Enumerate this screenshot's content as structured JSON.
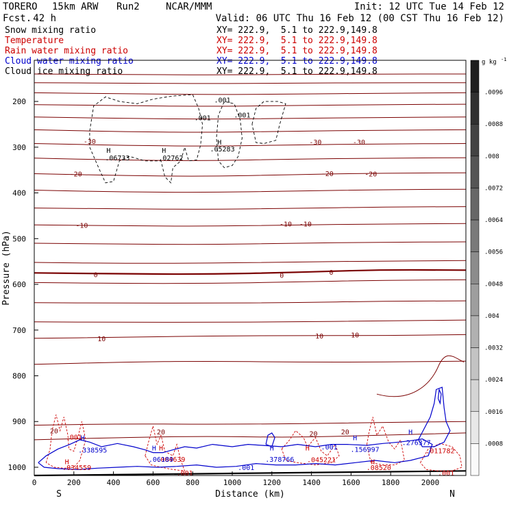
{
  "header": {
    "model": "TORERO",
    "grid": "15km ARW",
    "run": "Run2",
    "org": "NCAR/MMM",
    "init": "Init: 12 UTC Tue 14 Feb 12",
    "fcst_label": "Fcst.",
    "fcst_value": "42 h",
    "valid": "Valid: 06 UTC Thu 16 Feb 12 (00 CST Thu 16 Feb 12)"
  },
  "legend": [
    {
      "name": "Snow mixing ratio",
      "xy": "XY= 222.9,  5.1 to 222.9,149.8",
      "color": "#000000"
    },
    {
      "name": "Temperature",
      "xy": "XY= 222.9,  5.1 to 222.9,149.8",
      "color": "#cc0000"
    },
    {
      "name": "Rain water mixing ratio",
      "xy": "XY= 222.9,  5.1 to 222.9,149.8",
      "color": "#cc0000"
    },
    {
      "name": "Cloud water mixing ratio",
      "xy": "XY= 222.9,  5.1 to 222.9,149.8",
      "color": "#0000cc"
    },
    {
      "name": "Cloud ice mixing ratio",
      "xy": "XY= 222.9,  5.1 to 222.9,149.8",
      "color": "#000000"
    }
  ],
  "colors": {
    "temperature": "#7a0000",
    "rain": "#cc0000",
    "cloud_water": "#0000cc",
    "snow": "#000000",
    "axes": "#000000"
  },
  "chart_data": {
    "type": "line",
    "xlabel": "Distance (km)",
    "ylabel": "Pressure (hPa)",
    "xlim": [
      0,
      2180
    ],
    "ylim": [
      1018,
      110
    ],
    "x_ticks": [
      0,
      200,
      400,
      600,
      800,
      1000,
      1200,
      1400,
      1600,
      1800,
      2000
    ],
    "y_ticks": [
      200,
      300,
      400,
      500,
      600,
      700,
      800,
      900,
      1000
    ],
    "x_end_labels": {
      "left": "S",
      "right": "N"
    },
    "temperature_contours": [
      {
        "value": -45,
        "p": [
          140,
          141,
          142,
          141,
          140,
          140
        ]
      },
      {
        "value": -45,
        "p": [
          159,
          160,
          161,
          160,
          159,
          159
        ]
      },
      {
        "value": -40,
        "p": [
          181,
          183,
          185,
          184,
          182,
          181
        ]
      },
      {
        "value": -40,
        "p": [
          207,
          209,
          211,
          209,
          207,
          206
        ]
      },
      {
        "value": -35,
        "p": [
          234,
          237,
          239,
          237,
          235,
          234
        ]
      },
      {
        "value": -30,
        "p": [
          262,
          266,
          268,
          265,
          263,
          262
        ]
      },
      {
        "value": -30,
        "p": [
          292,
          296,
          298,
          295,
          293,
          292
        ]
      },
      {
        "value": -25,
        "p": [
          324,
          328,
          330,
          326,
          324,
          323
        ]
      },
      {
        "value": -20,
        "p": [
          358,
          362,
          364,
          360,
          357,
          356
        ]
      },
      {
        "value": -20,
        "p": [
          394,
          398,
          399,
          396,
          393,
          392
        ]
      },
      {
        "value": -15,
        "p": [
          433,
          435,
          436,
          434,
          431,
          430
        ]
      },
      {
        "value": -10,
        "p": [
          470,
          472,
          473,
          470,
          468,
          467
        ]
      },
      {
        "value": -10,
        "p": [
          510,
          512,
          513,
          510,
          508,
          507
        ]
      },
      {
        "value": -5,
        "p": [
          552,
          554,
          554,
          551,
          549,
          548
        ]
      },
      {
        "value": 0,
        "p": [
          575,
          577,
          578,
          574,
          568,
          569
        ]
      },
      {
        "value": 0,
        "p": [
          596,
          598,
          598,
          595,
          591,
          590
        ]
      },
      {
        "value": 5,
        "p": [
          640,
          641,
          641,
          640,
          637,
          636
        ]
      },
      {
        "value": 10,
        "p": [
          682,
          683,
          683,
          682,
          680,
          678
        ]
      },
      {
        "value": 10,
        "p": [
          718,
          716,
          713,
          712,
          712,
          710
        ]
      },
      {
        "value": 15,
        "p": [
          775,
          770,
          768,
          770,
          770,
          768
        ]
      },
      {
        "value": 20,
        "p": [
          908,
          905,
          906,
          905,
          902,
          900
        ]
      },
      {
        "value": 20,
        "p": [
          940,
          935,
          932,
          935,
          930,
          925
        ]
      }
    ],
    "temperature_labels": [
      {
        "text": "-30",
        "x": 280,
        "p": 287
      },
      {
        "text": "-30",
        "x": 1420,
        "p": 288
      },
      {
        "text": "-30",
        "x": 1640,
        "p": 288
      },
      {
        "text": "-20",
        "x": 210,
        "p": 358
      },
      {
        "text": "-20",
        "x": 1480,
        "p": 357
      },
      {
        "text": "-20",
        "x": 1700,
        "p": 358
      },
      {
        "text": "-10",
        "x": 240,
        "p": 470
      },
      {
        "text": "-10",
        "x": 1270,
        "p": 467
      },
      {
        "text": "-10",
        "x": 1370,
        "p": 467
      },
      {
        "text": "0",
        "x": 310,
        "p": 578
      },
      {
        "text": "0",
        "x": 1250,
        "p": 580
      },
      {
        "text": "0",
        "x": 1500,
        "p": 573
      },
      {
        "text": "10",
        "x": 340,
        "p": 718
      },
      {
        "text": "10",
        "x": 1440,
        "p": 712
      },
      {
        "text": "10",
        "x": 1620,
        "p": 710
      },
      {
        "text": "20",
        "x": 100,
        "p": 920
      },
      {
        "text": "20",
        "x": 640,
        "p": 922
      },
      {
        "text": "20",
        "x": 1410,
        "p": 926
      },
      {
        "text": "20",
        "x": 1570,
        "p": 922
      }
    ],
    "snow_labels": [
      {
        "text": ".001",
        "x": 950,
        "p": 196
      },
      {
        "text": ".001",
        "x": 850,
        "p": 235
      },
      {
        "text": ".001",
        "x": 1050,
        "p": 229
      },
      {
        "text": "H",
        "x": 935,
        "p": 288
      },
      {
        "text": ".05283",
        "x": 950,
        "p": 303
      },
      {
        "text": "H",
        "x": 375,
        "p": 306
      },
      {
        "text": ".06733",
        "x": 420,
        "p": 323
      },
      {
        "text": "H",
        "x": 655,
        "p": 306
      },
      {
        "text": ".02762",
        "x": 690,
        "p": 323
      }
    ],
    "rain_labels": [
      {
        "text": ".001",
        "x": 200,
        "p": 933
      },
      {
        "text": "H",
        "x": 165,
        "p": 987
      },
      {
        "text": ".034559",
        "x": 215,
        "p": 1000
      },
      {
        "text": "H",
        "x": 640,
        "p": 957
      },
      {
        "text": ".004639",
        "x": 690,
        "p": 982
      },
      {
        "text": ".001",
        "x": 760,
        "p": 1012
      },
      {
        "text": "H",
        "x": 1380,
        "p": 957
      },
      {
        "text": ".045221",
        "x": 1450,
        "p": 983
      },
      {
        "text": "H",
        "x": 1710,
        "p": 987
      },
      {
        "text": ".08520",
        "x": 1740,
        "p": 1000
      },
      {
        "text": ".011782",
        "x": 2050,
        "p": 963
      },
      {
        "text": ".001",
        "x": 2080,
        "p": 1012
      }
    ],
    "cloud_water_labels": [
      {
        "text": "H",
        "x": 245,
        "p": 935
      },
      {
        "text": ".338595",
        "x": 295,
        "p": 962
      },
      {
        "text": "H",
        "x": 605,
        "p": 957
      },
      {
        "text": ".06189",
        "x": 640,
        "p": 982
      },
      {
        "text": "H",
        "x": 1200,
        "p": 957
      },
      {
        "text": ".378766",
        "x": 1240,
        "p": 982
      },
      {
        "text": ".001",
        "x": 1070,
        "p": 1000
      },
      {
        "text": "H",
        "x": 1620,
        "p": 935
      },
      {
        "text": ".156997",
        "x": 1670,
        "p": 960
      },
      {
        "text": ".001",
        "x": 1490,
        "p": 955
      },
      {
        "text": "H",
        "x": 1900,
        "p": 922
      },
      {
        "text": ".276377",
        "x": 1930,
        "p": 945
      }
    ]
  },
  "colorbar": {
    "unit": "g kg",
    "unit_exp": "-1",
    "ticks": [
      ".0096",
      ".0088",
      ".008",
      ".0072",
      ".0064",
      ".0056",
      ".0048",
      ".004",
      ".0032",
      ".0024",
      ".0016",
      ".0008"
    ],
    "levels": 13
  }
}
